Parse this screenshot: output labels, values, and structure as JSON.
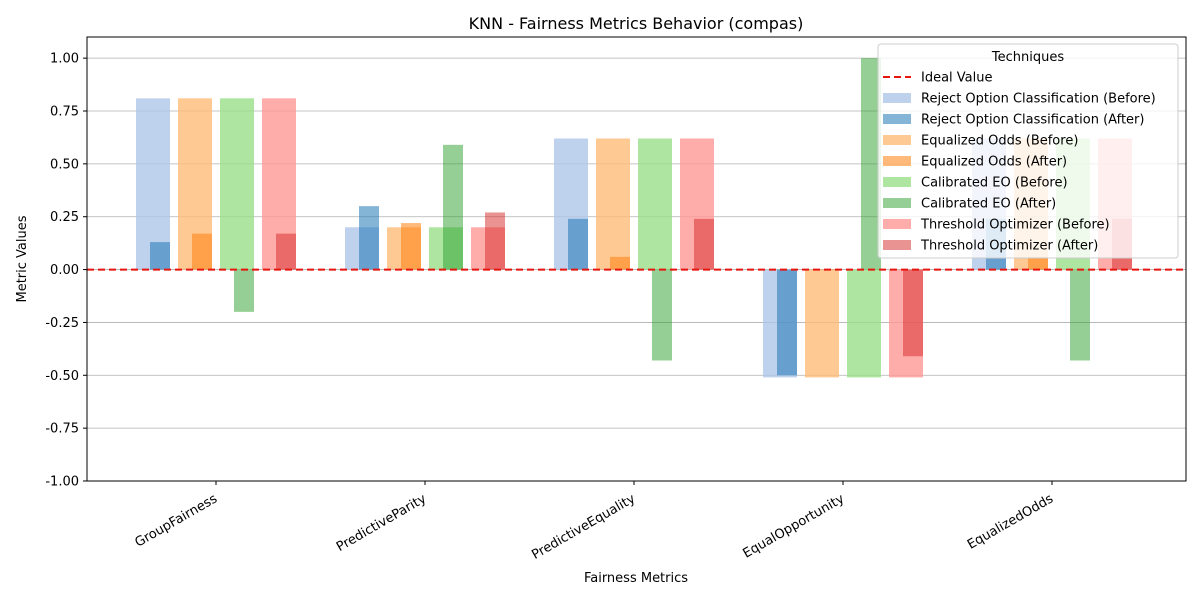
{
  "chart_data": {
    "type": "bar",
    "title": "KNN - Fairness Metrics Behavior (compas)",
    "xlabel": "Fairness Metrics",
    "ylabel": "Metric Values",
    "ylim": [
      -1.0,
      1.1
    ],
    "yticks": [
      "-1.00",
      "-0.75",
      "-0.50",
      "-0.25",
      "0.00",
      "0.25",
      "0.50",
      "0.75",
      "1.00"
    ],
    "ytick_values": [
      -1.0,
      -0.75,
      -0.5,
      -0.25,
      0.0,
      0.25,
      0.5,
      0.75,
      1.0
    ],
    "grid": "horizontal",
    "ideal_value": 0.0,
    "categories": [
      "GroupFairness",
      "PredictiveParity",
      "PredictiveEquality",
      "EqualOpportunity",
      "EqualizedOdds"
    ],
    "legend": {
      "title": "Techniques",
      "placement": "top-right",
      "ideal_label": "Ideal Value"
    },
    "series": [
      {
        "name": "Reject Option Classification (Before)",
        "color": "#aec7e8",
        "alpha": 0.8,
        "values": [
          0.81,
          0.2,
          0.62,
          -0.51,
          0.62
        ]
      },
      {
        "name": "Reject Option Classification (After)",
        "color": "#1f77b4",
        "alpha": 0.55,
        "values": [
          0.13,
          0.3,
          0.24,
          -0.5,
          0.24
        ]
      },
      {
        "name": "Equalized Odds (Before)",
        "color": "#ffbb78",
        "alpha": 0.8,
        "values": [
          0.81,
          0.2,
          0.62,
          -0.51,
          0.62
        ]
      },
      {
        "name": "Equalized Odds (After)",
        "color": "#ff7f0e",
        "alpha": 0.55,
        "values": [
          0.17,
          0.22,
          0.06,
          0.0,
          0.06
        ]
      },
      {
        "name": "Calibrated EO (Before)",
        "color": "#98df8a",
        "alpha": 0.8,
        "values": [
          0.81,
          0.2,
          0.62,
          -0.51,
          0.62
        ]
      },
      {
        "name": "Calibrated EO (After)",
        "color": "#2ca02c",
        "alpha": 0.5,
        "values": [
          -0.2,
          0.59,
          -0.43,
          1.0,
          -0.43
        ]
      },
      {
        "name": "Threshold Optimizer (Before)",
        "color": "#ff9896",
        "alpha": 0.8,
        "values": [
          0.81,
          0.2,
          0.62,
          -0.51,
          0.62
        ]
      },
      {
        "name": "Threshold Optimizer (After)",
        "color": "#d62728",
        "alpha": 0.5,
        "values": [
          0.17,
          0.27,
          0.24,
          -0.41,
          0.24
        ]
      }
    ]
  }
}
